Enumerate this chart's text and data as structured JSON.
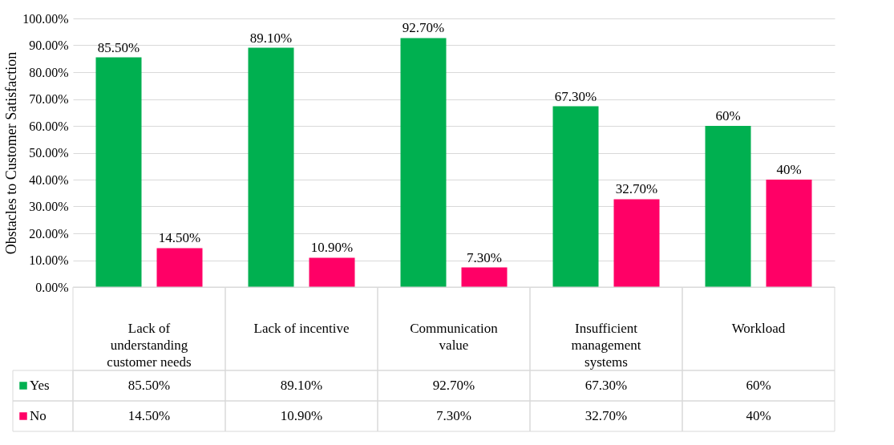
{
  "chart_data": {
    "type": "bar",
    "ylabel": "Obstacles to Customer Satisfaction",
    "categories": [
      "Lack of understanding customer needs",
      "Lack of incentive",
      "Communication value",
      "Insufficient management systems",
      "Workload"
    ],
    "series": [
      {
        "name": "Yes",
        "color": "#00b050",
        "values": [
          85.5,
          89.1,
          92.7,
          67.3,
          60
        ],
        "value_labels": [
          "85.50%",
          "89.10%",
          "92.70%",
          "67.30%",
          "60%"
        ]
      },
      {
        "name": "No",
        "color": "#ff0066",
        "values": [
          14.5,
          10.9,
          7.3,
          32.7,
          40
        ],
        "value_labels": [
          "14.50%",
          "10.90%",
          "7.30%",
          "32.70%",
          "40%"
        ]
      }
    ],
    "ylim": [
      0,
      100
    ],
    "yticks": [
      {
        "value": 0,
        "label": "0.00%"
      },
      {
        "value": 10,
        "label": "10.00%"
      },
      {
        "value": 20,
        "label": "20.00%"
      },
      {
        "value": 30,
        "label": "30.00%"
      },
      {
        "value": 40,
        "label": "40.00%"
      },
      {
        "value": 50,
        "label": "50.00%"
      },
      {
        "value": 60,
        "label": "60.00%"
      },
      {
        "value": 70,
        "label": "70.00%"
      },
      {
        "value": 80,
        "label": "80.00%"
      },
      {
        "value": 90,
        "label": "90.00%"
      },
      {
        "value": 100,
        "label": "100.00%"
      }
    ],
    "grid": "y",
    "legend": "bottom"
  }
}
